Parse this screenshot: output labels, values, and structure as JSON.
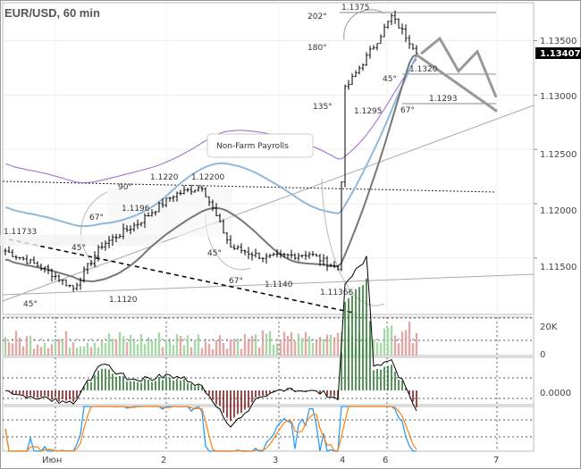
{
  "header": {
    "title": "EUR/USD, 60 min"
  },
  "price_axis": {
    "ticks": [
      "1.13500",
      "1.13000",
      "1.12500",
      "1.12000",
      "1.11500"
    ],
    "current_price": "1.13407",
    "current_color": "#000000"
  },
  "volume_axis": {
    "ticks": [
      "20K",
      "0"
    ]
  },
  "macd_axis": {
    "ticks": [
      "0.0000"
    ]
  },
  "time_axis": {
    "ticks": [
      "Июн",
      "2",
      "3",
      "4",
      "6",
      "7"
    ]
  },
  "colors": {
    "candle": "#000000",
    "wma_purple": "#9966cc",
    "ma_blue": "#8fb8dc",
    "ma_gray": "#777777",
    "forecast": "#999999",
    "vol_up": "#a7d9a7",
    "vol_down": "#e6a7a7",
    "macd_up": "#2e7d32",
    "macd_down": "#8b1a1a",
    "stoch_blue": "#2196f3",
    "stoch_orange": "#ff7f0e"
  },
  "chart_data": {
    "type": "candlestick",
    "title": "EUR/USD, 60 min",
    "ylim": [
      1.1098,
      1.1385
    ],
    "x_ticks": [
      "Июн",
      "2",
      "3",
      "4",
      "6",
      "7"
    ],
    "annotations": {
      "price_levels": [
        "1.1375",
        "1.1320",
        "1.1293",
        "1.1295",
        "1.1220",
        "1.12200",
        "1.1196",
        "1.11733",
        "1.1140",
        "1.1120",
        "1.11366"
      ],
      "angles": [
        "202°",
        "180°",
        "45°",
        "135°",
        "67°",
        "90°",
        "67°",
        "45°",
        "45°",
        "67°",
        "45°"
      ],
      "event_label": "Non-Farm Payrolls"
    },
    "series_segments": [
      {
        "from": 1.1158,
        "to": 1.114,
        "n": 12
      },
      {
        "from": 1.114,
        "to": 1.1122,
        "n": 8
      },
      {
        "from": 1.1122,
        "to": 1.1162,
        "n": 8
      },
      {
        "from": 1.1162,
        "to": 1.1182,
        "n": 10
      },
      {
        "from": 1.1182,
        "to": 1.1208,
        "n": 10
      },
      {
        "from": 1.1208,
        "to": 1.1216,
        "n": 8
      },
      {
        "from": 1.1216,
        "to": 1.116,
        "n": 8
      },
      {
        "from": 1.116,
        "to": 1.115,
        "n": 10
      },
      {
        "from": 1.115,
        "to": 1.1154,
        "n": 12
      },
      {
        "from": 1.1154,
        "to": 1.114,
        "n": 8
      },
      {
        "from": 1.114,
        "to": 1.1305,
        "n": 2
      },
      {
        "from": 1.1305,
        "to": 1.1345,
        "n": 8
      },
      {
        "from": 1.1345,
        "to": 1.1372,
        "n": 5
      },
      {
        "from": 1.1372,
        "to": 1.1341,
        "n": 7
      }
    ],
    "forecast": [
      1.1338,
      1.1352,
      1.1322,
      1.134,
      1.1298
    ],
    "indicators": {
      "volume_ylim": [
        0,
        30000
      ],
      "macd_range": [
        -0.0015,
        0.0035
      ],
      "stochastic_range": [
        0,
        100
      ]
    }
  }
}
